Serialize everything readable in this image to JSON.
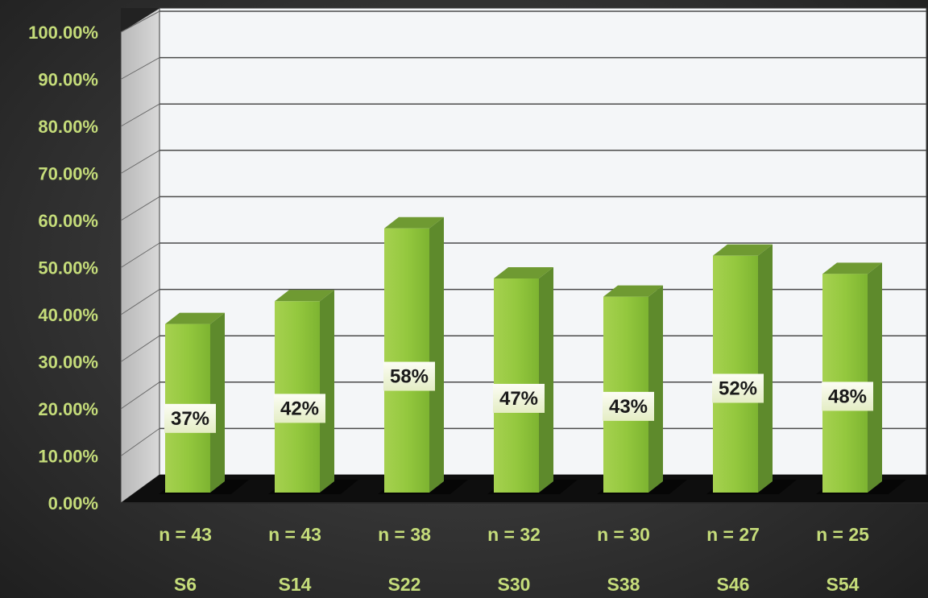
{
  "chart_data": {
    "type": "bar",
    "title": "",
    "xlabel": "",
    "ylabel": "",
    "categories": [
      "S6",
      "S14",
      "S22",
      "S30",
      "S38",
      "S46",
      "S54"
    ],
    "counts": [
      "n = 43",
      "n = 43",
      "n = 38",
      "n = 32",
      "n = 30",
      "n = 27",
      "n = 25"
    ],
    "values": [
      37,
      42,
      58,
      47,
      43,
      52,
      48
    ],
    "data_labels": [
      "37%",
      "42%",
      "58%",
      "47%",
      "43%",
      "52%",
      "48%"
    ],
    "ylim": [
      0,
      100
    ],
    "y_ticks": [
      "0.00%",
      "10.00%",
      "20.00%",
      "30.00%",
      "40.00%",
      "50.00%",
      "60.00%",
      "70.00%",
      "80.00%",
      "90.00%",
      "100.00%"
    ],
    "grid": true,
    "legend": "none",
    "colors": {
      "bar_front": "#8fc43a",
      "bar_side": "#5e8a2c",
      "bar_top": "#6f9a32",
      "tick_text": "#c5dc7a",
      "plot_back": "#f4f6f8",
      "grid": "#4a4a4a",
      "floor": "#0e0e0e"
    }
  }
}
